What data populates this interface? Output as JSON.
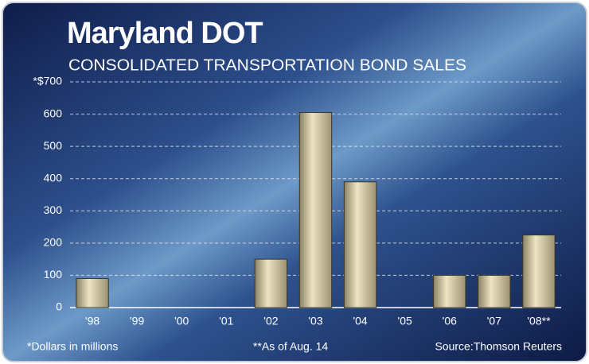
{
  "chart_data": {
    "type": "bar",
    "title": "Maryland DOT",
    "subtitle": "CONSOLIDATED TRANSPORTATION BOND SALES",
    "categories": [
      "'98",
      "'99",
      "'00",
      "'01",
      "'02",
      "'03",
      "'04",
      "'05",
      "'06",
      "'07",
      "'08**"
    ],
    "values": [
      90,
      0,
      0,
      0,
      150,
      605,
      390,
      0,
      100,
      100,
      225
    ],
    "color": "#c9c09a",
    "ylim": [
      0,
      700
    ],
    "yticks": [
      0,
      100,
      200,
      300,
      400,
      500,
      600,
      {
        "value": 700,
        "label": "*$700"
      }
    ],
    "grid": true,
    "notes": [
      "*Dollars in millions",
      "**As of Aug. 14",
      "Source:Thomson Reuters"
    ]
  }
}
